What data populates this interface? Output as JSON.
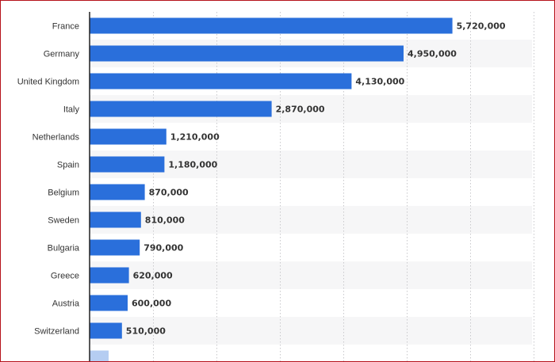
{
  "chart_data": {
    "type": "bar",
    "orientation": "horizontal",
    "categories": [
      "France",
      "Germany",
      "United Kingdom",
      "Italy",
      "Netherlands",
      "Spain",
      "Belgium",
      "Sweden",
      "Bulgaria",
      "Greece",
      "Austria",
      "Switzerland"
    ],
    "values": [
      5720000,
      4950000,
      4130000,
      2870000,
      1210000,
      1180000,
      870000,
      810000,
      790000,
      620000,
      600000,
      510000
    ],
    "value_labels": [
      "5,720,000",
      "4,950,000",
      "4,130,000",
      "2,870,000",
      "1,210,000",
      "1,180,000",
      "870,000",
      "810,000",
      "790,000",
      "620,000",
      "600,000",
      "510,000"
    ],
    "truncated_next_value": 300000,
    "xlim": [
      0,
      7000000
    ],
    "grid": true,
    "title": "",
    "xlabel": "",
    "ylabel": "",
    "colors": {
      "bar": "#2a6fdb",
      "band": "#f6f6f7",
      "grid": "#c9c9cc",
      "axis": "#222222",
      "frame": "#b5121b"
    }
  }
}
